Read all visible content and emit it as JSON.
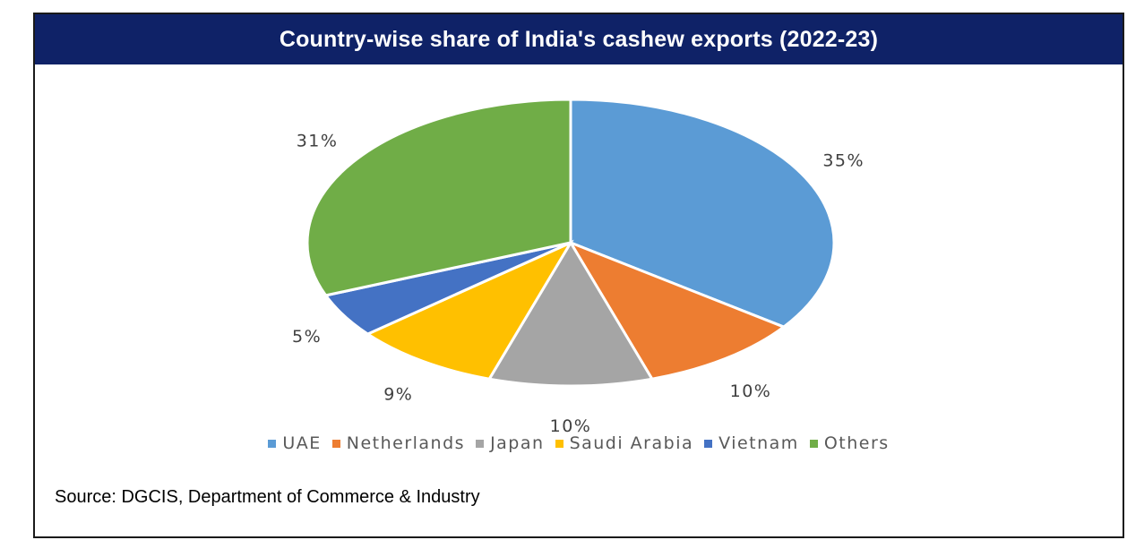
{
  "header": {
    "title": "Country-wise share of India's cashew exports (2022-23)"
  },
  "footer": {
    "source": "Source: DGCIS, Department of Commerce & Industry"
  },
  "chart_data": {
    "type": "pie",
    "title": "Country-wise share of India's cashew exports (2022-23)",
    "legend_placement": "bottom",
    "slices": [
      {
        "label": "UAE",
        "value": 35,
        "data_label": "35%",
        "color": "#5b9bd5"
      },
      {
        "label": "Netherlands",
        "value": 10,
        "data_label": "10%",
        "color": "#ed7d31"
      },
      {
        "label": "Japan",
        "value": 10,
        "data_label": "10%",
        "color": "#a5a5a5"
      },
      {
        "label": "Saudi Arabia",
        "value": 9,
        "data_label": "9%",
        "color": "#ffc000"
      },
      {
        "label": "Vietnam",
        "value": 5,
        "data_label": "5%",
        "color": "#4472c4"
      },
      {
        "label": "Others",
        "value": 31,
        "data_label": "31%",
        "color": "#70ad47"
      }
    ]
  }
}
